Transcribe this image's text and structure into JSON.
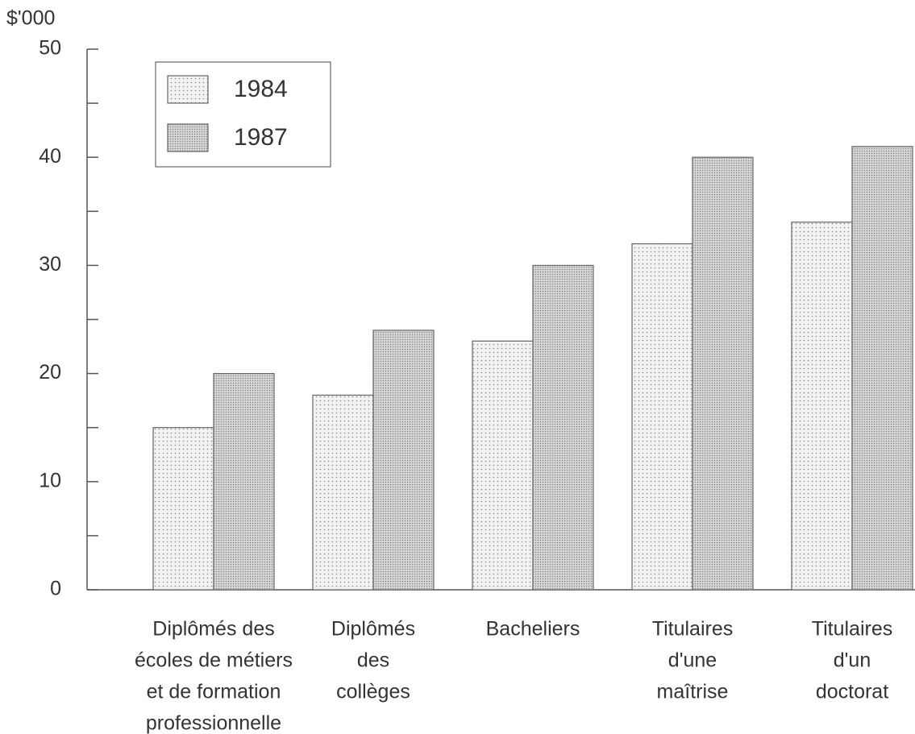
{
  "chart_data": {
    "type": "bar",
    "y_label": "$'000",
    "categories": [
      [
        "Diplômés des",
        "écoles de métiers",
        "et de formation",
        "professionnelle"
      ],
      [
        "Diplômés",
        "des",
        "collèges"
      ],
      [
        "Bacheliers"
      ],
      [
        "Titulaires",
        "d'une",
        "maîtrise"
      ],
      [
        "Titulaires",
        "d'un",
        "doctorat"
      ]
    ],
    "series": [
      {
        "name": "1984",
        "color": "#f2f2f2",
        "values": [
          15,
          18,
          23,
          32,
          34
        ]
      },
      {
        "name": "1987",
        "color": "#d6d6d6",
        "values": [
          20,
          24,
          30,
          40,
          41
        ]
      }
    ],
    "ylim": [
      0,
      50
    ],
    "yticks": [
      0,
      10,
      20,
      30,
      40,
      50
    ],
    "yticks_minor": [
      5,
      15,
      25,
      35,
      45
    ],
    "legend": "upper left"
  }
}
